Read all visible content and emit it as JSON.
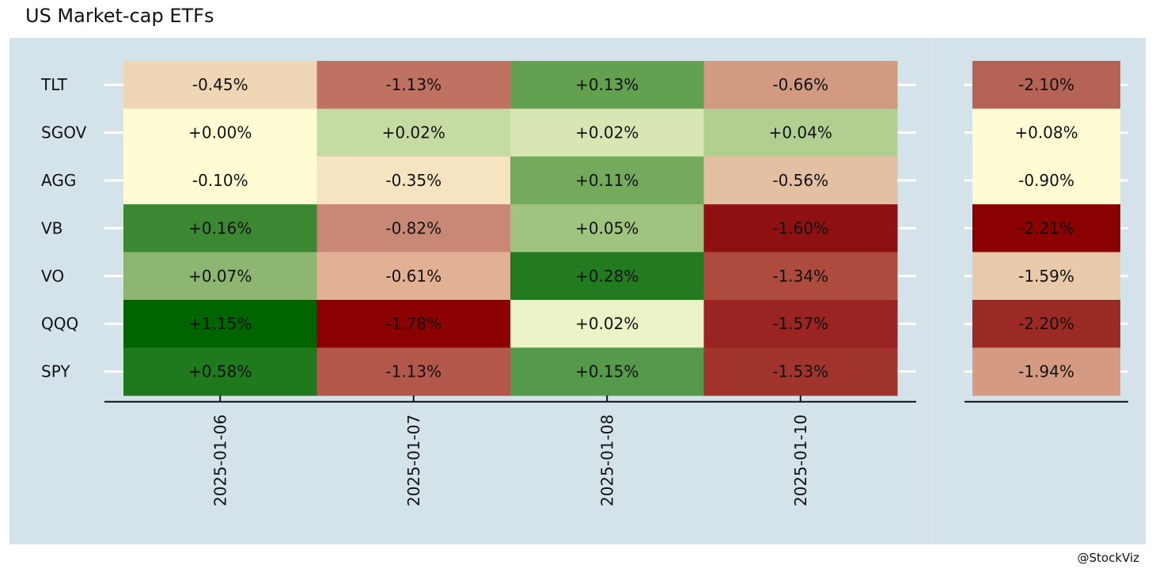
{
  "chart_data": {
    "type": "heatmap",
    "title": "US Market-cap ETFs",
    "caption": "@StockViz",
    "rows": [
      "TLT",
      "SGOV",
      "AGG",
      "VB",
      "VO",
      "QQQ",
      "SPY"
    ],
    "columns": [
      "2025-01-06",
      "2025-01-07",
      "2025-01-08",
      "2025-01-10"
    ],
    "values": [
      [
        -0.45,
        -1.13,
        0.13,
        -0.66
      ],
      [
        0.0,
        0.02,
        0.02,
        0.04
      ],
      [
        -0.1,
        -0.35,
        0.11,
        -0.56
      ],
      [
        0.16,
        -0.82,
        0.05,
        -1.6
      ],
      [
        0.07,
        -0.61,
        0.28,
        -1.34
      ],
      [
        1.15,
        -1.78,
        0.02,
        -1.57
      ],
      [
        0.58,
        -1.13,
        0.15,
        -1.53
      ]
    ],
    "labels": [
      [
        "-0.45%",
        "-1.13%",
        "+0.13%",
        "-0.66%"
      ],
      [
        "+0.00%",
        "+0.02%",
        "+0.02%",
        "+0.04%"
      ],
      [
        "-0.10%",
        "-0.35%",
        "+0.11%",
        "-0.56%"
      ],
      [
        "+0.16%",
        "-0.82%",
        "+0.05%",
        "-1.60%"
      ],
      [
        "+0.07%",
        "-0.61%",
        "+0.28%",
        "-1.34%"
      ],
      [
        "+1.15%",
        "-1.78%",
        "+0.02%",
        "-1.57%"
      ],
      [
        "+0.58%",
        "-1.13%",
        "+0.15%",
        "-1.53%"
      ]
    ],
    "colors": [
      [
        "#efd6b4",
        "#c07262",
        "#63a04f",
        "#d29a80"
      ],
      [
        "#fffcd4",
        "#c5dba2",
        "#d8e6b4",
        "#b0cf91"
      ],
      [
        "#fffcd4",
        "#f6e4c1",
        "#74aa5c",
        "#e4c0a2"
      ],
      [
        "#3c8832",
        "#c98875",
        "#9ec480",
        "#8f1010"
      ],
      [
        "#8db672",
        "#e2b194",
        "#237b20",
        "#ad4b3f"
      ],
      [
        "#006400",
        "#8b0000",
        "#ecf3c7",
        "#992421"
      ],
      [
        "#1f7a1e",
        "#b4574b",
        "#55994a",
        "#a1342c"
      ]
    ],
    "total": {
      "values": [
        -2.1,
        0.08,
        -0.9,
        -2.21,
        -1.59,
        -2.2,
        -1.94
      ],
      "labels": [
        "-2.10%",
        "+0.08%",
        "-0.90%",
        "-2.21%",
        "-1.59%",
        "-2.20%",
        "-1.94%"
      ],
      "colors": [
        "#b56354",
        "#fffcd4",
        "#fffcd4",
        "#8b0000",
        "#e8caab",
        "#9c2a24",
        "#d49b82"
      ]
    },
    "background": "#d4e3ea"
  }
}
